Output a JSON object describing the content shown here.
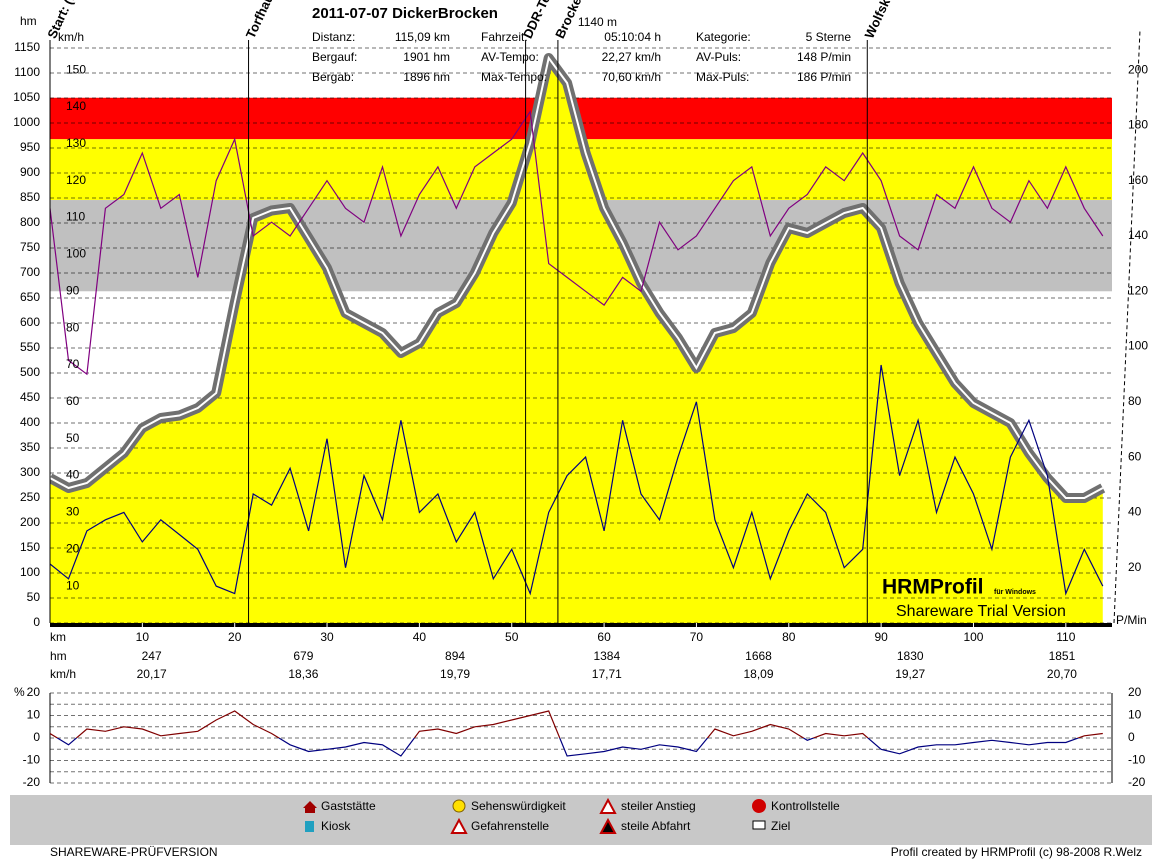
{
  "header": {
    "title": "2011-07-07 DickerBrocken",
    "stats": [
      {
        "label": "Distanz:",
        "value": "115,09 km"
      },
      {
        "label": "Bergauf:",
        "value": "1901 hm"
      },
      {
        "label": "Bergab:",
        "value": "1896 hm"
      },
      {
        "label": "Fahrzeit:",
        "value": "05:10:04 h"
      },
      {
        "label": "AV-Tempo:",
        "value": "22,27 km/h"
      },
      {
        "label": "Max-Tempo:",
        "value": "70,60 km/h"
      },
      {
        "label": "Kategorie:",
        "value": "5 Sterne"
      },
      {
        "label": "AV-Puls:",
        "value": "148 P/min"
      },
      {
        "label": "Max-Puls:",
        "value": "186 P/min"
      }
    ]
  },
  "chart_data": [
    {
      "type": "line",
      "x": [
        0,
        2,
        4,
        6,
        8,
        10,
        12,
        14,
        16,
        18,
        20,
        22,
        24,
        26,
        28,
        30,
        32,
        34,
        36,
        38,
        40,
        42,
        44,
        46,
        48,
        50,
        52,
        54,
        56,
        58,
        60,
        62,
        64,
        66,
        68,
        70,
        72,
        74,
        76,
        78,
        80,
        82,
        84,
        86,
        88,
        90,
        92,
        94,
        96,
        98,
        100,
        102,
        104,
        106,
        108,
        110,
        112,
        114
      ],
      "xlim": [
        0,
        115
      ],
      "xticks": [
        10,
        20,
        30,
        40,
        50,
        60,
        70,
        80,
        90,
        100,
        110
      ],
      "xlabel": "km",
      "ylabel": "hm",
      "ylim": [
        0,
        1150
      ],
      "yticks": [
        0,
        50,
        100,
        150,
        200,
        250,
        300,
        350,
        400,
        450,
        500,
        550,
        600,
        650,
        700,
        750,
        800,
        850,
        900,
        950,
        1000,
        1050,
        1100,
        1150
      ],
      "y2label": "P/Min",
      "y2lim": [
        0,
        208
      ],
      "y2ticks": [
        20,
        40,
        60,
        80,
        100,
        120,
        140,
        160,
        180,
        200
      ],
      "y3label": "km/h",
      "y3lim": [
        0,
        156
      ],
      "y3ticks": [
        10,
        20,
        30,
        40,
        50,
        60,
        70,
        80,
        90,
        100,
        110,
        120,
        130,
        140,
        150
      ],
      "grid": true,
      "zones": [
        {
          "from": 175,
          "to": 190,
          "color": "#ff0000"
        },
        {
          "from": 153,
          "to": 175,
          "color": "#ffff00"
        },
        {
          "from": 120,
          "to": 153,
          "color": "#c0c0c0"
        }
      ],
      "series": [
        {
          "axis": "y",
          "color": "#ffff00",
          "fill": true,
          "values": [
            290,
            270,
            280,
            310,
            340,
            390,
            410,
            415,
            430,
            460,
            640,
            810,
            825,
            830,
            770,
            710,
            620,
            600,
            580,
            540,
            560,
            620,
            640,
            700,
            780,
            840,
            960,
            1130,
            1080,
            940,
            830,
            760,
            680,
            620,
            570,
            510,
            580,
            590,
            620,
            720,
            790,
            780,
            800,
            820,
            830,
            790,
            680,
            600,
            540,
            480,
            440,
            420,
            400,
            340,
            290,
            250,
            250,
            270
          ]
        },
        {
          "axis": "y2",
          "color": "#800080",
          "values": [
            150,
            95,
            90,
            150,
            155,
            170,
            150,
            155,
            125,
            160,
            175,
            140,
            145,
            140,
            150,
            160,
            150,
            145,
            165,
            140,
            155,
            165,
            150,
            165,
            170,
            175,
            185,
            130,
            125,
            120,
            115,
            125,
            120,
            145,
            135,
            140,
            150,
            160,
            165,
            140,
            150,
            155,
            165,
            160,
            170,
            160,
            140,
            135,
            155,
            150,
            165,
            150,
            145,
            160,
            150,
            165,
            150,
            140
          ]
        },
        {
          "axis": "y3",
          "color": "#000080",
          "values": [
            16,
            12,
            25,
            28,
            30,
            22,
            28,
            24,
            20,
            10,
            8,
            35,
            32,
            42,
            25,
            50,
            15,
            40,
            28,
            55,
            30,
            35,
            22,
            30,
            12,
            20,
            8,
            30,
            40,
            45,
            25,
            55,
            35,
            28,
            45,
            60,
            28,
            15,
            30,
            12,
            25,
            35,
            30,
            15,
            20,
            70,
            40,
            55,
            30,
            45,
            35,
            20,
            45,
            55,
            40,
            8,
            20,
            10
          ]
        }
      ],
      "waypoints": [
        {
          "label": "Start: (fo",
          "x": 0
        },
        {
          "label": "Torfhaus",
          "x": 21.5
        },
        {
          "label": "DDR-Tee",
          "x": 51.5
        },
        {
          "label": "Brocken",
          "x": 55,
          "annotation": "1140 m"
        },
        {
          "label": "Wolfskop",
          "x": 88.5
        }
      ],
      "summary": {
        "hm_label": "hm",
        "kmh_label": "km/h",
        "hm": [
          247,
          679,
          894,
          1384,
          1668,
          1830,
          1851
        ],
        "kmh": [
          "20,17",
          "18,36",
          "19,79",
          "17,71",
          "18,09",
          "19,27",
          "20,70"
        ]
      }
    },
    {
      "type": "line",
      "x": [
        0,
        2,
        4,
        6,
        8,
        10,
        12,
        14,
        16,
        18,
        20,
        22,
        24,
        26,
        28,
        30,
        32,
        34,
        36,
        38,
        40,
        42,
        44,
        46,
        48,
        50,
        52,
        54,
        56,
        58,
        60,
        62,
        64,
        66,
        68,
        70,
        72,
        74,
        76,
        78,
        80,
        82,
        84,
        86,
        88,
        90,
        92,
        94,
        96,
        98,
        100,
        102,
        104,
        106,
        108,
        110,
        112,
        114
      ],
      "xlim": [
        0,
        115
      ],
      "ylabel": "%",
      "ylim": [
        -20,
        20
      ],
      "yticks": [
        -20,
        -10,
        0,
        10,
        20
      ],
      "minor_yticks": [
        -15,
        -5,
        5,
        15
      ],
      "pos_color": "#800000",
      "neg_color": "#000080",
      "values": [
        2,
        -3,
        4,
        3,
        5,
        4,
        1,
        2,
        3,
        8,
        12,
        6,
        2,
        -3,
        -6,
        -5,
        -4,
        -2,
        -3,
        -8,
        3,
        4,
        2,
        5,
        6,
        8,
        10,
        12,
        -8,
        -7,
        -6,
        -4,
        -5,
        -3,
        -4,
        -6,
        4,
        1,
        3,
        6,
        4,
        -1,
        2,
        1,
        2,
        -5,
        -7,
        -4,
        -3,
        -3,
        -2,
        -1,
        -2,
        -3,
        -2,
        -2,
        1,
        2
      ]
    }
  ],
  "legend": [
    "Gaststätte",
    "Kiosk",
    "Sehenswürdigkeit",
    "Gefahrenstelle",
    "steiler Anstieg",
    "steile Abfahrt",
    "Kontrollstelle",
    "Ziel"
  ],
  "watermark": {
    "name": "HRMProfil",
    "sub": "für Windows",
    "text": "Shareware Trial Version"
  },
  "footer": {
    "left": "SHAREWARE-PRÜFVERSION",
    "right": "Profil created by HRMProfil (c) 98-2008 R.Welz"
  }
}
